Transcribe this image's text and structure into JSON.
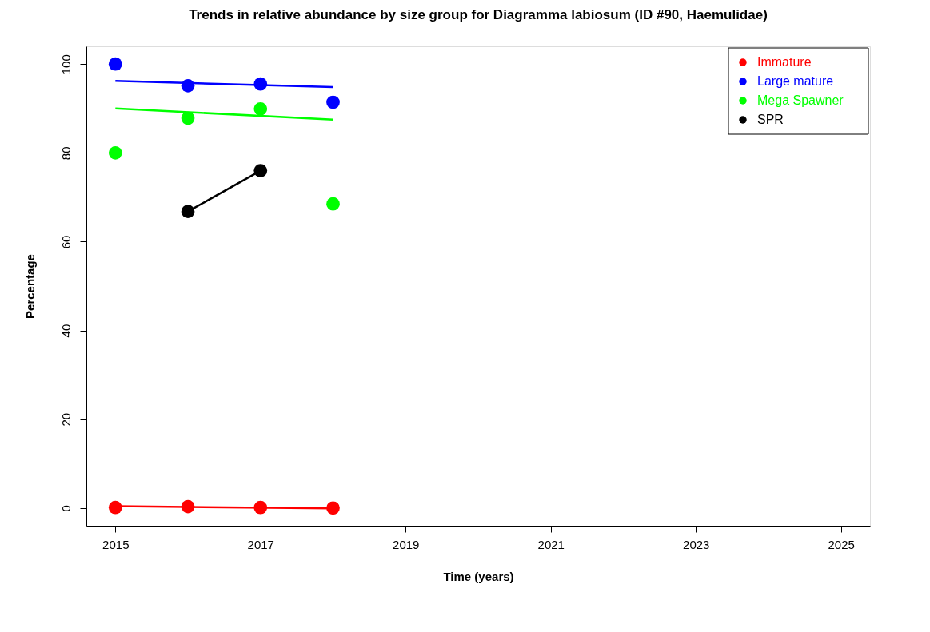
{
  "chart_data": {
    "type": "scatter",
    "title": "Trends in relative abundance by size group for Diagramma labiosum (ID #90, Haemulidae)",
    "xlabel": "Time (years)",
    "ylabel": "Percentage",
    "x": [
      2015,
      2016,
      2017,
      2018
    ],
    "series": [
      {
        "name": "Immature",
        "color": "#ff0000",
        "marker": "circle",
        "values": [
          0.1,
          0.3,
          0.1,
          0.0
        ]
      },
      {
        "name": "Large mature",
        "color": "#0000ff",
        "marker": "circle",
        "values": [
          100,
          95.1,
          95.5,
          91.4
        ]
      },
      {
        "name": "Mega Spawner",
        "color": "#00ff00",
        "marker": "circle",
        "values": [
          80.0,
          87.8,
          89.9,
          68.5
        ]
      },
      {
        "name": "SPR",
        "color": "#000000",
        "type": "line",
        "marker": "circle",
        "line_style": "solid",
        "x": [
          2016,
          2017
        ],
        "values": [
          66.8,
          76.0
        ]
      },
      {
        "color": "#ff0000",
        "type": "line",
        "marker": "none",
        "line_style": "solid",
        "x": [
          2015,
          2018
        ],
        "values": [
          0.4,
          -0.1
        ]
      },
      {
        "color": "#0000ff",
        "type": "line",
        "marker": "none",
        "line_style": "solid",
        "x": [
          2015,
          2018
        ],
        "values": [
          96.2,
          94.8
        ]
      },
      {
        "color": "#00ff00",
        "type": "line",
        "marker": "none",
        "line_style": "solid",
        "x": [
          2015,
          2018
        ],
        "values": [
          90.0,
          87.5
        ]
      }
    ],
    "xlim": [
      2014.6,
      2025.4
    ],
    "xticks": [
      2015,
      2017,
      2019,
      2021,
      2023,
      2025
    ],
    "ylim": [
      -4,
      104
    ],
    "yticks": [
      0,
      20,
      40,
      60,
      80,
      100
    ],
    "grid": false,
    "legend": "top right"
  }
}
